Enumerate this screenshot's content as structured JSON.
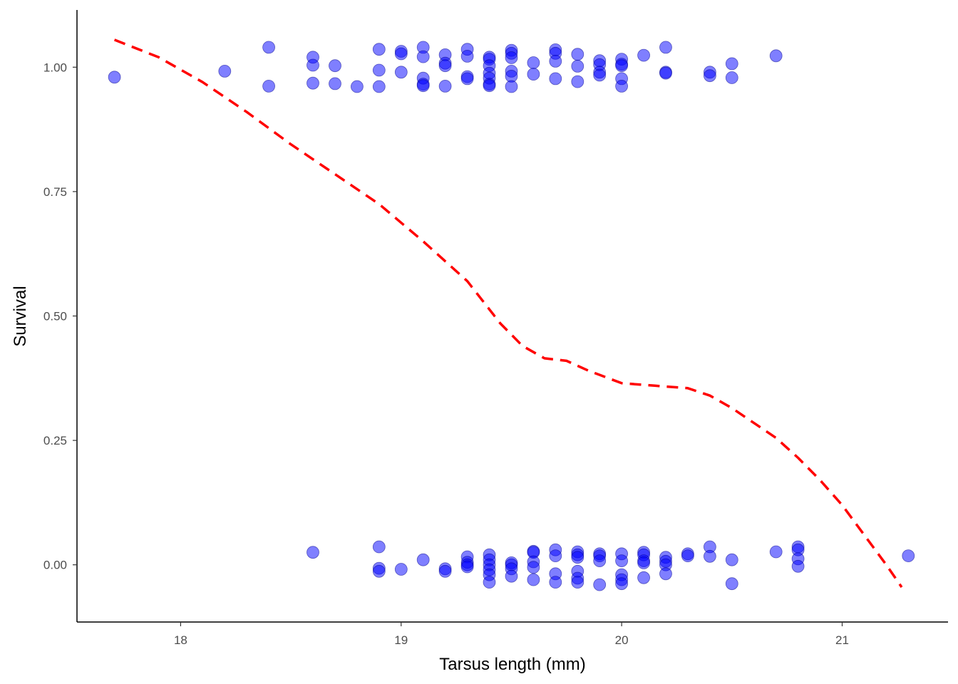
{
  "chart_data": {
    "type": "scatter",
    "title": "",
    "xlabel": "Tarsus length (mm)",
    "ylabel": "Survival",
    "xlim": [
      17.53,
      21.48
    ],
    "ylim": [
      -0.115,
      1.115
    ],
    "x_ticks": [
      {
        "value": 18,
        "label": "18"
      },
      {
        "value": 19,
        "label": "19"
      },
      {
        "value": 20,
        "label": "20"
      },
      {
        "value": 21,
        "label": "21"
      }
    ],
    "y_ticks": [
      {
        "value": 0.0,
        "label": "0.00"
      },
      {
        "value": 0.25,
        "label": "0.25"
      },
      {
        "value": 0.5,
        "label": "0.50"
      },
      {
        "value": 0.75,
        "label": "0.75"
      },
      {
        "value": 1.0,
        "label": "1.00"
      }
    ],
    "grid": false,
    "legend": "none",
    "point_color": "#0000ff",
    "point_opacity": 0.5,
    "line_color": "#ff0000",
    "series": [
      {
        "kind": "points",
        "points": [
          [
            17.7,
            0.98
          ],
          [
            18.2,
            0.992
          ],
          [
            18.4,
            1.04
          ],
          [
            18.4,
            0.962
          ],
          [
            18.6,
            1.02
          ],
          [
            18.6,
            1.004
          ],
          [
            18.6,
            0.968
          ],
          [
            18.7,
            1.003
          ],
          [
            18.7,
            0.967
          ],
          [
            18.8,
            0.961
          ],
          [
            18.9,
            1.036
          ],
          [
            18.9,
            0.994
          ],
          [
            18.9,
            0.961
          ],
          [
            19.0,
            1.032
          ],
          [
            19.0,
            1.027
          ],
          [
            19.0,
            0.99
          ],
          [
            19.1,
            1.04
          ],
          [
            19.1,
            1.021
          ],
          [
            19.1,
            0.978
          ],
          [
            19.1,
            0.966
          ],
          [
            19.1,
            0.963
          ],
          [
            19.2,
            1.025
          ],
          [
            19.2,
            1.008
          ],
          [
            19.2,
            1.003
          ],
          [
            19.2,
            0.962
          ],
          [
            19.3,
            1.036
          ],
          [
            19.3,
            1.022
          ],
          [
            19.3,
            0.981
          ],
          [
            19.3,
            0.977
          ],
          [
            19.4,
            1.02
          ],
          [
            19.4,
            1.016
          ],
          [
            19.4,
            1.003
          ],
          [
            19.4,
            0.988
          ],
          [
            19.4,
            0.978
          ],
          [
            19.4,
            0.966
          ],
          [
            19.4,
            0.963
          ],
          [
            19.5,
            1.034
          ],
          [
            19.5,
            1.028
          ],
          [
            19.5,
            1.019
          ],
          [
            19.5,
            0.992
          ],
          [
            19.5,
            0.982
          ],
          [
            19.5,
            0.961
          ],
          [
            19.6,
            1.009
          ],
          [
            19.6,
            0.986
          ],
          [
            19.7,
            1.035
          ],
          [
            19.7,
            1.028
          ],
          [
            19.7,
            1.012
          ],
          [
            19.7,
            0.977
          ],
          [
            19.8,
            1.026
          ],
          [
            19.8,
            1.002
          ],
          [
            19.8,
            0.971
          ],
          [
            19.9,
            1.013
          ],
          [
            19.9,
            1.005
          ],
          [
            19.9,
            0.99
          ],
          [
            19.9,
            0.984
          ],
          [
            20.0,
            1.016
          ],
          [
            20.0,
            1.006
          ],
          [
            20.0,
            1.003
          ],
          [
            20.0,
            0.977
          ],
          [
            20.0,
            0.962
          ],
          [
            20.1,
            1.024
          ],
          [
            20.2,
            1.04
          ],
          [
            20.2,
            0.99
          ],
          [
            20.2,
            0.988
          ],
          [
            20.4,
            0.99
          ],
          [
            20.4,
            0.983
          ],
          [
            20.5,
            1.007
          ],
          [
            20.5,
            0.979
          ],
          [
            20.7,
            1.023
          ],
          [
            18.6,
            0.025
          ],
          [
            18.9,
            0.036
          ],
          [
            18.9,
            -0.007
          ],
          [
            18.9,
            -0.013
          ],
          [
            19.0,
            -0.009
          ],
          [
            19.1,
            0.01
          ],
          [
            19.2,
            -0.008
          ],
          [
            19.2,
            -0.013
          ],
          [
            19.3,
            0.016
          ],
          [
            19.3,
            0.005
          ],
          [
            19.3,
            0.0
          ],
          [
            19.3,
            -0.004
          ],
          [
            19.4,
            0.02
          ],
          [
            19.4,
            0.01
          ],
          [
            19.4,
            0.0
          ],
          [
            19.4,
            -0.01
          ],
          [
            19.4,
            -0.02
          ],
          [
            19.4,
            -0.035
          ],
          [
            19.5,
            0.004
          ],
          [
            19.5,
            0.0
          ],
          [
            19.5,
            -0.008
          ],
          [
            19.5,
            -0.023
          ],
          [
            19.6,
            0.027
          ],
          [
            19.6,
            0.025
          ],
          [
            19.6,
            0.006
          ],
          [
            19.6,
            -0.005
          ],
          [
            19.6,
            -0.03
          ],
          [
            19.7,
            0.03
          ],
          [
            19.7,
            0.018
          ],
          [
            19.7,
            -0.018
          ],
          [
            19.7,
            -0.035
          ],
          [
            19.8,
            0.026
          ],
          [
            19.8,
            0.02
          ],
          [
            19.8,
            0.015
          ],
          [
            19.8,
            -0.013
          ],
          [
            19.8,
            -0.027
          ],
          [
            19.8,
            -0.035
          ],
          [
            19.9,
            0.022
          ],
          [
            19.9,
            0.018
          ],
          [
            19.9,
            0.008
          ],
          [
            19.9,
            -0.04
          ],
          [
            20.0,
            0.022
          ],
          [
            20.0,
            0.008
          ],
          [
            20.0,
            -0.02
          ],
          [
            20.0,
            -0.03
          ],
          [
            20.0,
            -0.038
          ],
          [
            20.1,
            0.025
          ],
          [
            20.1,
            0.02
          ],
          [
            20.1,
            0.008
          ],
          [
            20.1,
            0.004
          ],
          [
            20.1,
            -0.026
          ],
          [
            20.2,
            0.015
          ],
          [
            20.2,
            0.007
          ],
          [
            20.2,
            0.0
          ],
          [
            20.2,
            -0.018
          ],
          [
            20.3,
            0.022
          ],
          [
            20.3,
            0.018
          ],
          [
            20.4,
            0.036
          ],
          [
            20.4,
            0.017
          ],
          [
            20.5,
            0.01
          ],
          [
            20.5,
            -0.038
          ],
          [
            20.7,
            0.026
          ],
          [
            20.8,
            0.036
          ],
          [
            20.8,
            0.03
          ],
          [
            20.8,
            0.012
          ],
          [
            20.8,
            -0.003
          ],
          [
            21.3,
            0.018
          ]
        ]
      },
      {
        "kind": "line",
        "style": "dashed",
        "points": [
          [
            17.7,
            1.055
          ],
          [
            17.9,
            1.02
          ],
          [
            18.1,
            0.97
          ],
          [
            18.3,
            0.91
          ],
          [
            18.5,
            0.845
          ],
          [
            18.7,
            0.785
          ],
          [
            18.9,
            0.725
          ],
          [
            19.1,
            0.65
          ],
          [
            19.3,
            0.57
          ],
          [
            19.45,
            0.485
          ],
          [
            19.55,
            0.44
          ],
          [
            19.65,
            0.415
          ],
          [
            19.75,
            0.41
          ],
          [
            19.85,
            0.39
          ],
          [
            20.0,
            0.365
          ],
          [
            20.15,
            0.36
          ],
          [
            20.3,
            0.355
          ],
          [
            20.4,
            0.34
          ],
          [
            20.5,
            0.315
          ],
          [
            20.6,
            0.285
          ],
          [
            20.7,
            0.255
          ],
          [
            20.8,
            0.215
          ],
          [
            20.9,
            0.17
          ],
          [
            21.0,
            0.12
          ],
          [
            21.1,
            0.06
          ],
          [
            21.2,
            0.0
          ],
          [
            21.27,
            -0.045
          ]
        ]
      }
    ]
  }
}
